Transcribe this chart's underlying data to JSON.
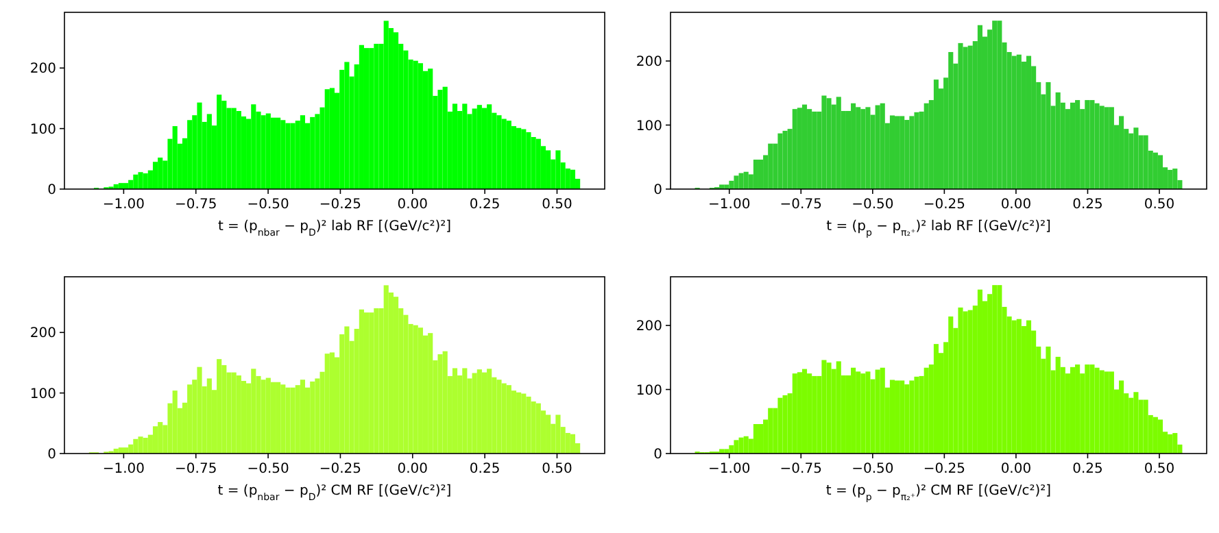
{
  "chart_data": [
    {
      "type": "histogram",
      "xlabel": "t = (p$_{nbar}$ − p$_{D}$)² lab RF [(GeV/c²)²]",
      "color": "#00ff00",
      "xlim": [
        -1.205,
        0.665
      ],
      "xticks": [
        {
          "value": -1,
          "label": "−1.00"
        },
        {
          "value": -0.75,
          "label": "−0.75"
        },
        {
          "value": -0.5,
          "label": "−0.50"
        },
        {
          "value": -0.25,
          "label": "−0.25"
        },
        {
          "value": 0,
          "label": "0.00"
        },
        {
          "value": 0.25,
          "label": "0.25"
        },
        {
          "value": 0.5,
          "label": "0.50"
        }
      ],
      "ylim": [
        0,
        292
      ],
      "yticks": [
        0,
        100,
        200
      ],
      "grid": false,
      "bins": [
        -1.12,
        -1.103,
        -1.086,
        -1.069,
        -1.052,
        -1.035,
        -1.018,
        -1.001,
        -0.984,
        -0.967,
        -0.95,
        -0.933,
        -0.916,
        -0.899,
        -0.882,
        -0.865,
        -0.848,
        -0.831,
        -0.814,
        -0.797,
        -0.78,
        -0.763,
        -0.746,
        -0.729,
        -0.712,
        -0.695,
        -0.678,
        -0.661,
        -0.644,
        -0.627,
        -0.61,
        -0.593,
        -0.576,
        -0.559,
        -0.542,
        -0.525,
        -0.508,
        -0.491,
        -0.474,
        -0.457,
        -0.44,
        -0.423,
        -0.406,
        -0.389,
        -0.372,
        -0.355,
        -0.338,
        -0.321,
        -0.304,
        -0.287,
        -0.27,
        -0.253,
        -0.236,
        -0.219,
        -0.202,
        -0.185,
        -0.168,
        -0.151,
        -0.134,
        -0.117,
        -0.1,
        -0.083,
        -0.066,
        -0.049,
        -0.032,
        -0.015,
        0.002,
        0.019,
        0.036,
        0.053,
        0.07,
        0.087,
        0.104,
        0.121,
        0.138,
        0.155,
        0.172,
        0.189,
        0.206,
        0.223,
        0.24,
        0.257,
        0.274,
        0.291,
        0.308,
        0.325,
        0.342,
        0.359,
        0.376,
        0.393,
        0.41,
        0.427,
        0.444,
        0.461,
        0.478,
        0.495,
        0.512,
        0.529,
        0.546,
        0.563,
        0.58
      ],
      "values": [
        0,
        2,
        0,
        3,
        4,
        8,
        10,
        10,
        15,
        24,
        28,
        26,
        31,
        45,
        52,
        47,
        83,
        104,
        75,
        84,
        114,
        122,
        143,
        111,
        124,
        105,
        156,
        146,
        134,
        134,
        129,
        120,
        116,
        140,
        128,
        122,
        125,
        118,
        118,
        114,
        109,
        109,
        113,
        122,
        109,
        119,
        124,
        135,
        165,
        167,
        159,
        197,
        210,
        186,
        206,
        238,
        233,
        233,
        240,
        240,
        278,
        266,
        259,
        240,
        229,
        214,
        212,
        208,
        195,
        199,
        154,
        164,
        169,
        128,
        141,
        129,
        141,
        124,
        133,
        139,
        134,
        140,
        126,
        122,
        116,
        113,
        104,
        101,
        99,
        94,
        86,
        83,
        71,
        64,
        49,
        64,
        44,
        34,
        32,
        17
      ]
    },
    {
      "type": "histogram",
      "xlabel": "t = (p$_{p}$ − p$_{π₂⁺}$)² lab RF [(GeV/c²)²]",
      "color": "#32cd32",
      "xlim": [
        -1.205,
        0.665
      ],
      "xticks": [
        {
          "value": -1,
          "label": "−1.00"
        },
        {
          "value": -0.75,
          "label": "−0.75"
        },
        {
          "value": -0.5,
          "label": "−0.50"
        },
        {
          "value": -0.25,
          "label": "−0.25"
        },
        {
          "value": 0,
          "label": "0.00"
        },
        {
          "value": 0.25,
          "label": "0.25"
        },
        {
          "value": 0.5,
          "label": "0.50"
        }
      ],
      "ylim": [
        0,
        276
      ],
      "yticks": [
        0,
        100,
        200
      ],
      "grid": false,
      "bins": [
        -1.12,
        -1.103,
        -1.086,
        -1.069,
        -1.052,
        -1.035,
        -1.018,
        -1.001,
        -0.984,
        -0.967,
        -0.95,
        -0.933,
        -0.916,
        -0.899,
        -0.882,
        -0.865,
        -0.848,
        -0.831,
        -0.814,
        -0.797,
        -0.78,
        -0.763,
        -0.746,
        -0.729,
        -0.712,
        -0.695,
        -0.678,
        -0.661,
        -0.644,
        -0.627,
        -0.61,
        -0.593,
        -0.576,
        -0.559,
        -0.542,
        -0.525,
        -0.508,
        -0.491,
        -0.474,
        -0.457,
        -0.44,
        -0.423,
        -0.406,
        -0.389,
        -0.372,
        -0.355,
        -0.338,
        -0.321,
        -0.304,
        -0.287,
        -0.27,
        -0.253,
        -0.236,
        -0.219,
        -0.202,
        -0.185,
        -0.168,
        -0.151,
        -0.134,
        -0.117,
        -0.1,
        -0.083,
        -0.066,
        -0.049,
        -0.032,
        -0.015,
        0.002,
        0.019,
        0.036,
        0.053,
        0.07,
        0.087,
        0.104,
        0.121,
        0.138,
        0.155,
        0.172,
        0.189,
        0.206,
        0.223,
        0.24,
        0.257,
        0.274,
        0.291,
        0.308,
        0.325,
        0.342,
        0.359,
        0.376,
        0.393,
        0.41,
        0.427,
        0.444,
        0.461,
        0.478,
        0.495,
        0.512,
        0.529,
        0.546,
        0.563,
        0.58
      ],
      "values": [
        2,
        0,
        0,
        2,
        3,
        7,
        7,
        13,
        21,
        25,
        27,
        23,
        46,
        46,
        53,
        71,
        71,
        87,
        91,
        94,
        125,
        127,
        132,
        125,
        121,
        121,
        146,
        142,
        132,
        144,
        122,
        122,
        134,
        128,
        125,
        128,
        116,
        131,
        134,
        103,
        115,
        114,
        114,
        108,
        114,
        120,
        121,
        134,
        139,
        171,
        157,
        174,
        214,
        196,
        228,
        222,
        224,
        231,
        256,
        238,
        249,
        263,
        263,
        229,
        214,
        208,
        210,
        199,
        208,
        192,
        167,
        148,
        167,
        130,
        151,
        135,
        125,
        135,
        139,
        125,
        139,
        139,
        134,
        130,
        128,
        128,
        100,
        114,
        94,
        87,
        96,
        84,
        84,
        60,
        57,
        53,
        34,
        30,
        32,
        14
      ]
    },
    {
      "type": "histogram",
      "xlabel": "t = (p$_{nbar}$ − p$_{D}$)² CM RF [(GeV/c²)²]",
      "color": "#adff2f",
      "xlim": [
        -1.205,
        0.665
      ],
      "xticks": [
        {
          "value": -1,
          "label": "−1.00"
        },
        {
          "value": -0.75,
          "label": "−0.75"
        },
        {
          "value": -0.5,
          "label": "−0.50"
        },
        {
          "value": -0.25,
          "label": "−0.25"
        },
        {
          "value": 0,
          "label": "0.00"
        },
        {
          "value": 0.25,
          "label": "0.25"
        },
        {
          "value": 0.5,
          "label": "0.50"
        }
      ],
      "ylim": [
        0,
        292
      ],
      "yticks": [
        0,
        100,
        200
      ],
      "grid": false,
      "bins": [
        -1.12,
        -1.103,
        -1.086,
        -1.069,
        -1.052,
        -1.035,
        -1.018,
        -1.001,
        -0.984,
        -0.967,
        -0.95,
        -0.933,
        -0.916,
        -0.899,
        -0.882,
        -0.865,
        -0.848,
        -0.831,
        -0.814,
        -0.797,
        -0.78,
        -0.763,
        -0.746,
        -0.729,
        -0.712,
        -0.695,
        -0.678,
        -0.661,
        -0.644,
        -0.627,
        -0.61,
        -0.593,
        -0.576,
        -0.559,
        -0.542,
        -0.525,
        -0.508,
        -0.491,
        -0.474,
        -0.457,
        -0.44,
        -0.423,
        -0.406,
        -0.389,
        -0.372,
        -0.355,
        -0.338,
        -0.321,
        -0.304,
        -0.287,
        -0.27,
        -0.253,
        -0.236,
        -0.219,
        -0.202,
        -0.185,
        -0.168,
        -0.151,
        -0.134,
        -0.117,
        -0.1,
        -0.083,
        -0.066,
        -0.049,
        -0.032,
        -0.015,
        0.002,
        0.019,
        0.036,
        0.053,
        0.07,
        0.087,
        0.104,
        0.121,
        0.138,
        0.155,
        0.172,
        0.189,
        0.206,
        0.223,
        0.24,
        0.257,
        0.274,
        0.291,
        0.308,
        0.325,
        0.342,
        0.359,
        0.376,
        0.393,
        0.41,
        0.427,
        0.444,
        0.461,
        0.478,
        0.495,
        0.512,
        0.529,
        0.546,
        0.563,
        0.58
      ],
      "values": [
        2,
        2,
        0,
        3,
        4,
        8,
        10,
        10,
        15,
        24,
        28,
        26,
        31,
        45,
        52,
        47,
        83,
        104,
        75,
        84,
        114,
        122,
        143,
        111,
        124,
        105,
        156,
        146,
        134,
        134,
        129,
        120,
        116,
        140,
        128,
        122,
        125,
        118,
        118,
        114,
        109,
        109,
        113,
        122,
        109,
        119,
        124,
        135,
        165,
        167,
        159,
        197,
        210,
        186,
        206,
        238,
        233,
        233,
        240,
        240,
        278,
        266,
        259,
        240,
        229,
        214,
        212,
        208,
        195,
        199,
        154,
        164,
        169,
        128,
        141,
        129,
        141,
        124,
        133,
        139,
        134,
        140,
        126,
        122,
        116,
        113,
        104,
        101,
        99,
        94,
        86,
        83,
        71,
        64,
        49,
        64,
        44,
        34,
        32,
        17
      ]
    },
    {
      "type": "histogram",
      "xlabel": "t = (p$_{p}$ − p$_{π₂⁺}$)² CM RF [(GeV/c²)²]",
      "color": "#7cfc00",
      "xlim": [
        -1.205,
        0.665
      ],
      "xticks": [
        {
          "value": -1,
          "label": "−1.00"
        },
        {
          "value": -0.75,
          "label": "−0.75"
        },
        {
          "value": -0.5,
          "label": "−0.50"
        },
        {
          "value": -0.25,
          "label": "−0.25"
        },
        {
          "value": 0,
          "label": "0.00"
        },
        {
          "value": 0.25,
          "label": "0.25"
        },
        {
          "value": 0.5,
          "label": "0.50"
        }
      ],
      "ylim": [
        0,
        276
      ],
      "yticks": [
        0,
        100,
        200
      ],
      "grid": false,
      "bins": [
        -1.12,
        -1.103,
        -1.086,
        -1.069,
        -1.052,
        -1.035,
        -1.018,
        -1.001,
        -0.984,
        -0.967,
        -0.95,
        -0.933,
        -0.916,
        -0.899,
        -0.882,
        -0.865,
        -0.848,
        -0.831,
        -0.814,
        -0.797,
        -0.78,
        -0.763,
        -0.746,
        -0.729,
        -0.712,
        -0.695,
        -0.678,
        -0.661,
        -0.644,
        -0.627,
        -0.61,
        -0.593,
        -0.576,
        -0.559,
        -0.542,
        -0.525,
        -0.508,
        -0.491,
        -0.474,
        -0.457,
        -0.44,
        -0.423,
        -0.406,
        -0.389,
        -0.372,
        -0.355,
        -0.338,
        -0.321,
        -0.304,
        -0.287,
        -0.27,
        -0.253,
        -0.236,
        -0.219,
        -0.202,
        -0.185,
        -0.168,
        -0.151,
        -0.134,
        -0.117,
        -0.1,
        -0.083,
        -0.066,
        -0.049,
        -0.032,
        -0.015,
        0.002,
        0.019,
        0.036,
        0.053,
        0.07,
        0.087,
        0.104,
        0.121,
        0.138,
        0.155,
        0.172,
        0.189,
        0.206,
        0.223,
        0.24,
        0.257,
        0.274,
        0.291,
        0.308,
        0.325,
        0.342,
        0.359,
        0.376,
        0.393,
        0.41,
        0.427,
        0.444,
        0.461,
        0.478,
        0.495,
        0.512,
        0.529,
        0.546,
        0.563,
        0.58
      ],
      "values": [
        3,
        2,
        2,
        3,
        3,
        7,
        7,
        13,
        21,
        25,
        27,
        23,
        46,
        46,
        53,
        71,
        71,
        87,
        91,
        94,
        125,
        127,
        132,
        125,
        121,
        121,
        146,
        142,
        132,
        144,
        122,
        122,
        134,
        128,
        125,
        128,
        116,
        131,
        134,
        103,
        115,
        114,
        114,
        108,
        114,
        120,
        121,
        134,
        139,
        171,
        157,
        174,
        214,
        196,
        228,
        222,
        224,
        231,
        256,
        238,
        249,
        263,
        263,
        229,
        214,
        208,
        210,
        199,
        208,
        192,
        167,
        148,
        167,
        130,
        151,
        135,
        125,
        135,
        139,
        125,
        139,
        139,
        134,
        130,
        128,
        128,
        100,
        114,
        94,
        87,
        96,
        84,
        84,
        60,
        57,
        53,
        34,
        30,
        32,
        14
      ]
    }
  ]
}
